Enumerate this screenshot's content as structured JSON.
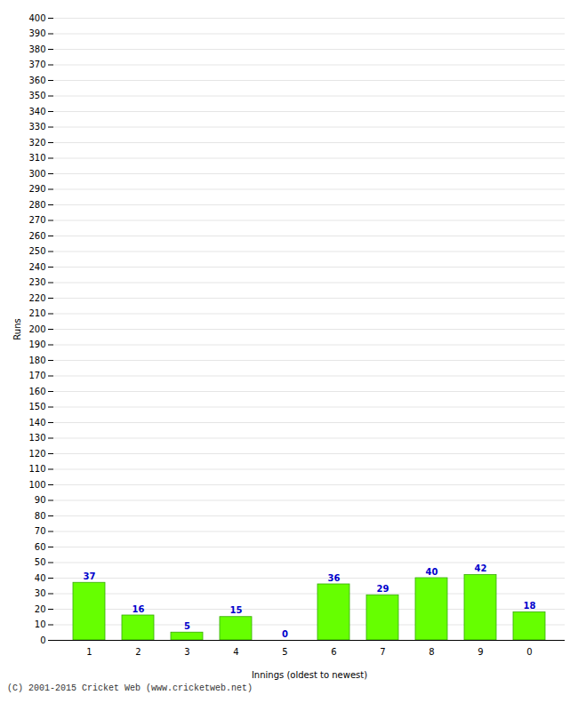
{
  "chart_data": {
    "type": "bar",
    "categories": [
      "1",
      "2",
      "3",
      "4",
      "5",
      "6",
      "7",
      "8",
      "9",
      "0"
    ],
    "values": [
      37,
      16,
      5,
      15,
      0,
      36,
      29,
      40,
      42,
      18
    ],
    "color": "#66ff00",
    "xlabel": "Innings (oldest to newest)",
    "ylabel": "Runs",
    "ylim": [
      0,
      400
    ],
    "yticks": [
      0,
      10,
      20,
      30,
      40,
      50,
      60,
      70,
      80,
      90,
      100,
      110,
      120,
      130,
      140,
      150,
      160,
      170,
      180,
      190,
      200,
      210,
      220,
      230,
      240,
      250,
      260,
      270,
      280,
      290,
      300,
      310,
      320,
      330,
      340,
      350,
      360,
      370,
      380,
      390,
      400
    ],
    "grid": true,
    "data_labels": true,
    "caption": "(C) 2001-2015 Cricket Web (www.cricketweb.net)"
  }
}
